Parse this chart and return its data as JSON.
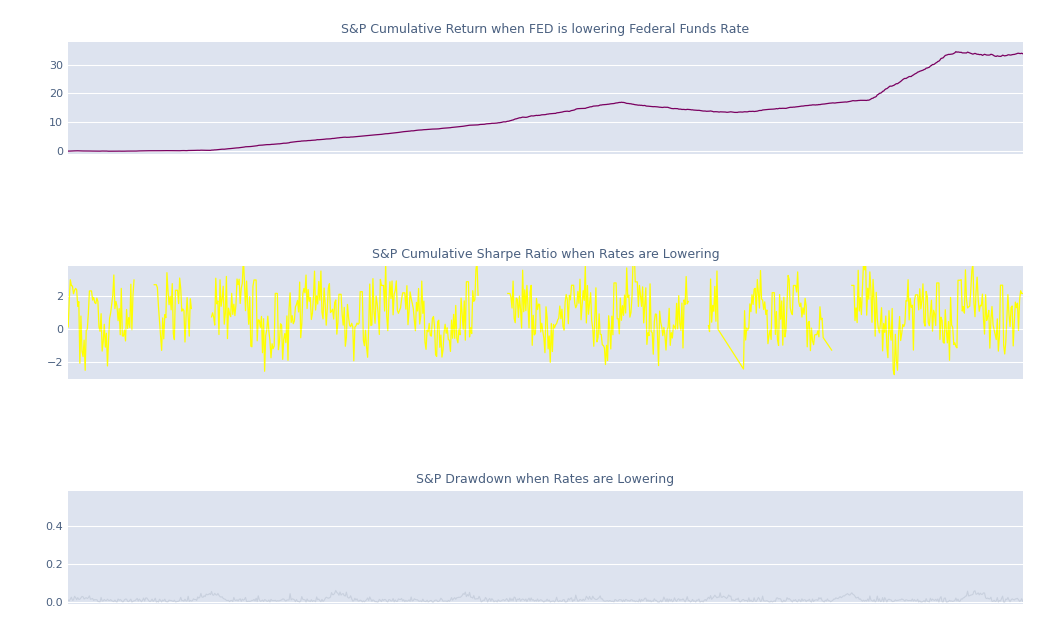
{
  "title1": "S&P Cumulative Return when FED is lowering Federal Funds Rate",
  "title2": "S&P Cumulative Sharpe Ratio when Rates are Lowering",
  "title3": "S&P Drawdown when Rates are Lowering",
  "bg_color": "#dde3ef",
  "fig_bg": "#ffffff",
  "line1_color": "#7a0060",
  "line2_color": "#ffff00",
  "line3_color": "#c8d0de",
  "title_color": "#4a6080",
  "tick_color": "#4a6080",
  "grid_color": "#ffffff",
  "n_points": 900,
  "seed": 42
}
